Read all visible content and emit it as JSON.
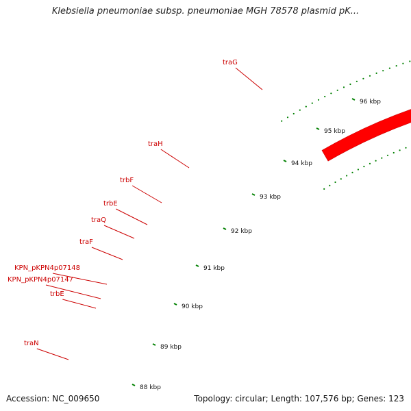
{
  "title": "Klebsiella pneumoniae subsp. pneumoniae MGH 78578 plasmid pK...",
  "accession": "Accession: NC_009650",
  "topology": "Topology: circular; Length: 107,576 bp; Genes: 123",
  "colors": {
    "gene": "#ff0000",
    "gene_dark": "#c80000",
    "backbone": "#888888",
    "tick": "#008000",
    "gene_label": "#cc0000",
    "text": "#111111"
  },
  "ticks": [
    {
      "label": "88 kbp"
    },
    {
      "label": "89 kbp"
    },
    {
      "label": "90 kbp"
    },
    {
      "label": "91 kbp"
    },
    {
      "label": "92 kbp"
    },
    {
      "label": "93 kbp"
    },
    {
      "label": "94 kbp"
    },
    {
      "label": "95 kbp"
    },
    {
      "label": "96 kbp"
    }
  ],
  "genes": [
    {
      "label": "traN"
    },
    {
      "label": "trbE"
    },
    {
      "label": "KPN_pKPN4p07147"
    },
    {
      "label": "KPN_pKPN4p07148"
    },
    {
      "label": "traF"
    },
    {
      "label": "traQ"
    },
    {
      "label": "trbE"
    },
    {
      "label": "trbF"
    },
    {
      "label": "traH"
    },
    {
      "label": "traG"
    }
  ]
}
